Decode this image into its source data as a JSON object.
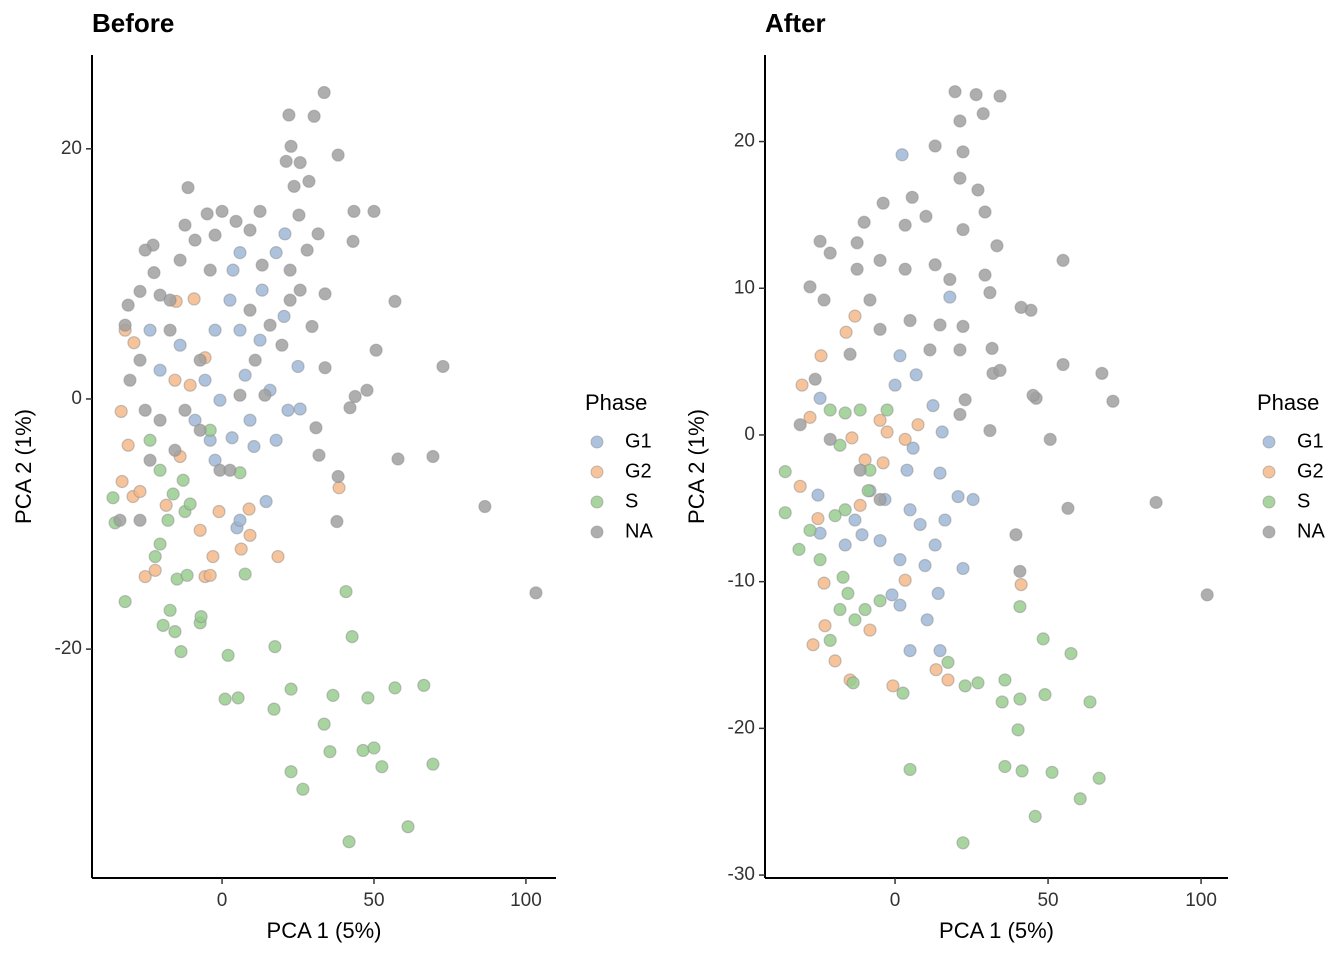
{
  "chart_data": [
    {
      "type": "scatter",
      "title": "Before",
      "xlabel": "PCA 1 (5%)",
      "ylabel": "PCA 2 (1%)",
      "legend_title": "Phase",
      "xlim": [
        -42.8,
        109.9
      ],
      "ylim": [
        -38.3,
        27.5
      ],
      "xticks": [
        0,
        50,
        100
      ],
      "yticks": [
        -20,
        0,
        20
      ],
      "series": [
        {
          "name": "G1",
          "color": "#9fb7d6",
          "x": [
            14.5,
            4.9,
            5.9,
            17.8,
            10.5,
            3.3,
            -2.3,
            21.7,
            25.7,
            25,
            20.4,
            20.7,
            17.8,
            5.9,
            3.6,
            2.6,
            5.9,
            12.5,
            13.2,
            -5.6,
            -2.3,
            -13.8,
            -20.4,
            -23.7,
            -8.9,
            -0.7,
            7.6,
            9.2,
            15.8,
            -3.9
          ],
          "y": [
            -8.2,
            -10.3,
            -9.7,
            -3.3,
            -3.8,
            -3.1,
            -4.9,
            -0.9,
            -0.8,
            2.6,
            6.6,
            13.2,
            11.7,
            11.7,
            10.3,
            7.9,
            5.5,
            4.7,
            8.7,
            1.5,
            5.5,
            4.3,
            2.3,
            5.5,
            -1.7,
            -0.1,
            1.9,
            -1.7,
            0.7,
            -3.3
          ]
        },
        {
          "name": "G2",
          "color": "#f5b988",
          "x": [
            38.5,
            18.4,
            8.9,
            6.3,
            -1,
            -5.6,
            -3,
            -33.2,
            -30.9,
            -32.9,
            -29.3,
            -27,
            -25.3,
            -22,
            -31.9,
            -29,
            -13.8,
            -15.5,
            -10.5,
            -5.6,
            -15.1,
            -9.2,
            -18.4,
            -7.2,
            -3.9,
            9.2
          ],
          "y": [
            -7.1,
            -12.6,
            -8.8,
            -12,
            -9,
            -14.2,
            -12.6,
            -1,
            -3.7,
            -6.6,
            -7.8,
            -7.4,
            -14.2,
            -13.7,
            5.5,
            4.5,
            -4.6,
            1.5,
            1.1,
            3.3,
            7.8,
            8,
            -8.5,
            -10.5,
            -14.1,
            -10.9
          ]
        },
        {
          "name": "S",
          "color": "#98cd8e",
          "x": [
            40.8,
            42.8,
            2,
            17.4,
            1,
            5.3,
            17.1,
            22.7,
            36.5,
            48,
            56.9,
            66.4,
            33.6,
            35.5,
            46.4,
            50,
            52.6,
            69.4,
            22.7,
            26.6,
            41.8,
            61.2,
            5.9,
            7.6,
            -7.2,
            -6.9,
            -13.5,
            -15.5,
            -19.4,
            -17.1,
            -31.9,
            -35.2,
            -35.9,
            -22,
            -20.4,
            -14.8,
            -11.5,
            -12.2,
            -10.5,
            -16.1,
            -20.4,
            -23.7,
            -17.8,
            -12.8,
            -3.9
          ],
          "y": [
            -15.4,
            -19,
            -20.5,
            -19.8,
            -24,
            -23.9,
            -24.8,
            -23.2,
            -23.7,
            -23.9,
            -23.1,
            -22.9,
            -26,
            -28.2,
            -28.1,
            -27.9,
            -29.4,
            -29.2,
            -29.8,
            -31.2,
            -35.4,
            -34.2,
            -5.9,
            -14,
            -17.9,
            -17.4,
            -20.2,
            -18.6,
            -18.1,
            -16.9,
            -16.2,
            -9.9,
            -7.9,
            -12.6,
            -11.6,
            -14.4,
            -14.1,
            -9,
            -8.4,
            -7.6,
            -5.7,
            -3.3,
            -9.7,
            -6.5,
            -2.5
          ]
        },
        {
          "name": "NA",
          "color": "#a0a0a0",
          "x": [
            103.3,
            86.5,
            69.4,
            57.9,
            37.8,
            38.2,
            31.9,
            30.9,
            42.1,
            43.8,
            47.7,
            50.7,
            72.7,
            56.9,
            33.9,
            29.6,
            33.9,
            43.4,
            50,
            43.1,
            33.6,
            30.3,
            22,
            22.7,
            38.2,
            21.1,
            25.7,
            28.6,
            23.7,
            25.3,
            31.6,
            28,
            12.5,
            4.6,
            0,
            -4.9,
            -11.2,
            -22.7,
            -25.3,
            -22.4,
            -30.9,
            -27,
            -20.4,
            -13.8,
            -8.9,
            -2.3,
            13.2,
            22.4,
            22.4,
            9.2,
            15.8,
            19.7,
            10.9,
            5.9,
            -7.2,
            -17.1,
            -27,
            -30.3,
            -25.3,
            -20.4,
            -12.2,
            -7.2,
            -0.7,
            -15.5,
            -23.7,
            -27,
            -33.6,
            2.6,
            14.1,
            25.7,
            -12.2,
            -3.9,
            -17.1,
            -31.9,
            9.2
          ],
          "y": [
            -15.5,
            -8.6,
            -4.6,
            -4.8,
            -9.8,
            -6.2,
            -4.5,
            -2.3,
            -0.7,
            0.2,
            0.7,
            3.9,
            2.6,
            7.8,
            2.5,
            5.8,
            8.4,
            15,
            15,
            12.6,
            24.5,
            22.6,
            22.7,
            20.2,
            19.5,
            19,
            18.9,
            17.4,
            17,
            14.7,
            13.2,
            11.9,
            15,
            14.2,
            15,
            14.8,
            16.9,
            12.3,
            11.9,
            10.1,
            7.5,
            8.6,
            8.3,
            11.1,
            12.7,
            13.1,
            10.7,
            10.3,
            7.9,
            7.1,
            5.9,
            4.3,
            3.1,
            0.3,
            3.1,
            5.5,
            3.1,
            1.5,
            -0.9,
            -1.7,
            -0.9,
            -2.5,
            -5.7,
            -4.1,
            -4.9,
            -9.7,
            -9.7,
            -5.7,
            0.3,
            8.7,
            13.9,
            10.3,
            7.9,
            5.9,
            13.5
          ]
        }
      ]
    },
    {
      "type": "scatter",
      "title": "After",
      "xlabel": "PCA 1 (5%)",
      "ylabel": "PCA 2 (1%)",
      "legend_title": "Phase",
      "xlim": [
        -42.5,
        108.8
      ],
      "ylim": [
        -30.2,
        25.9
      ],
      "xticks": [
        0,
        50,
        100
      ],
      "yticks": [
        -30,
        -20,
        -10,
        0,
        10,
        20
      ],
      "series": [
        {
          "name": "G1",
          "color": "#9fb7d6",
          "x": [
            2.3,
            17.9,
            6.9,
            12.4,
            15.4,
            14.7,
            20.6,
            25.5,
            22.2,
            14.1,
            16.3,
            5.9,
            3.9,
            4.9,
            8.2,
            13.1,
            9.8,
            1.6,
            1.6,
            10.5,
            4.9,
            14.7,
            -4.9,
            -10.8,
            -16.3,
            -24.5,
            -25.2,
            -13.1,
            -1,
            -3.3,
            -8.2,
            -24.5,
            0,
            1.6
          ],
          "y": [
            19.1,
            9.4,
            4.1,
            2,
            0.2,
            -2.6,
            -4.2,
            -4.4,
            -9.1,
            -10.8,
            -5.8,
            -0.9,
            -2.4,
            -5.1,
            -6.1,
            -7.5,
            -8.9,
            -8.5,
            -11.6,
            -12.6,
            -14.7,
            -14.7,
            -7.2,
            -6.8,
            -7.5,
            -6.7,
            -4.1,
            -5.8,
            -10.9,
            -4.4,
            -3.8,
            2.5,
            3.4,
            5.4
          ]
        },
        {
          "name": "G2",
          "color": "#f5b988",
          "x": [
            -23.2,
            -22.9,
            -26.8,
            -19.6,
            -14.7,
            -0.7,
            13.4,
            17.3,
            3.3,
            41.2,
            -31,
            -25.2,
            -27.8,
            -30.4,
            -24.2,
            -16,
            -13.1,
            -4.9,
            -2.6,
            -9.8,
            -14.1,
            -3.9,
            7.5,
            -11.4,
            -8.2,
            3.3
          ],
          "y": [
            -10.1,
            -13,
            -14.3,
            -15.4,
            -16.7,
            -17.1,
            -16,
            -16.7,
            -9.9,
            -10.2,
            -3.5,
            -5.7,
            1.2,
            3.4,
            5.4,
            7,
            8.1,
            1,
            0.2,
            -1.7,
            -0.2,
            -1.9,
            0.7,
            -4.8,
            -13.3,
            -0.3
          ]
        },
        {
          "name": "S",
          "color": "#98cd8e",
          "x": [
            -35.9,
            -35.9,
            -31.4,
            -21.2,
            -16.3,
            -11.4,
            -2.6,
            22.9,
            27.1,
            35.9,
            40.8,
            35,
            48.4,
            57.5,
            49,
            63.7,
            40.2,
            35.9,
            41.5,
            51.3,
            66.7,
            60.5,
            45.8,
            22.2,
            4.9,
            2.6,
            17.3,
            40.8,
            -13.7,
            -13.1,
            -18,
            -15.4,
            -21.2,
            -17,
            -24.5,
            -27.8,
            -16.3,
            -19.6,
            -9.8,
            -4.9,
            -8.2,
            -18,
            -8.8
          ],
          "y": [
            -2.5,
            -5.3,
            -7.8,
            1.7,
            1.5,
            1.7,
            1.7,
            -17.1,
            -16.9,
            -16.7,
            -18,
            -18.2,
            -13.9,
            -14.9,
            -17.7,
            -18.2,
            -20.1,
            -22.6,
            -22.9,
            -23,
            -23.4,
            -24.8,
            -26,
            -27.8,
            -22.8,
            -17.6,
            -15.5,
            -11.7,
            -16.9,
            -12.6,
            -11.9,
            -10.8,
            -14,
            -9.7,
            -8.5,
            -6.5,
            -5.1,
            -5.5,
            -11.9,
            -11.3,
            -2.4,
            -0.7,
            -3.8
          ]
        },
        {
          "name": "NA",
          "color": "#a0a0a0",
          "x": [
            102,
            85.3,
            71.2,
            67.6,
            54.9,
            50.7,
            46.1,
            45.1,
            56.5,
            39.5,
            40.8,
            44.4,
            41.2,
            54.9,
            31,
            31.7,
            32,
            31,
            21.2,
            19.6,
            26.5,
            34.3,
            28.8,
            21.2,
            22.2,
            13.1,
            21.2,
            27.1,
            29.4,
            22.2,
            33.3,
            10.1,
            5.6,
            3.3,
            -3.9,
            -12.4,
            -10.1,
            -24.5,
            -21.2,
            -27.8,
            -23.2,
            -12.4,
            -4.9,
            3.3,
            13.1,
            17.9,
            22.2,
            14.7,
            -8.2,
            -14.7,
            -26.1,
            -31,
            -21.2,
            -11.4,
            -4.9,
            21.2,
            11.4,
            4.9,
            -4.9,
            22.9,
            34.3,
            29.4
          ],
          "y": [
            -10.9,
            -4.6,
            2.3,
            4.2,
            4.8,
            -0.3,
            2.5,
            2.7,
            -5,
            -6.8,
            -9.3,
            8.5,
            8.7,
            11.9,
            9.7,
            5.9,
            4.2,
            0.3,
            1.4,
            23.4,
            23.2,
            23.1,
            21.9,
            21.4,
            19.3,
            19.7,
            17.5,
            16.7,
            15.2,
            14,
            12.9,
            14.9,
            16.2,
            14.3,
            15.8,
            13.1,
            14.5,
            13.2,
            12.4,
            10.1,
            9.2,
            11.3,
            11.9,
            11.3,
            11.6,
            10.6,
            7.4,
            7.5,
            9.2,
            5.5,
            3.8,
            0.7,
            -0.3,
            -2.4,
            -4.4,
            5.8,
            5.8,
            7.8,
            7.2,
            2.4,
            4.4,
            10.9
          ]
        }
      ]
    }
  ]
}
